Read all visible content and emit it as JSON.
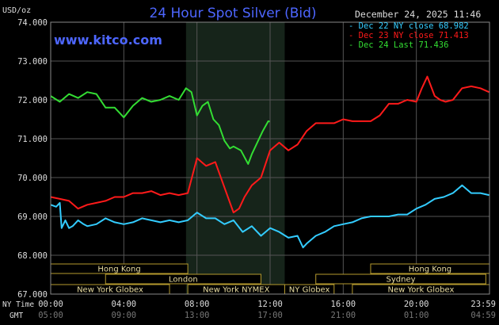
{
  "header": {
    "title": "24 Hour Spot Silver (Bid)",
    "datetime": "December 24, 2025 11:46",
    "unit": "USD/oz",
    "watermark": "www.kitco.com"
  },
  "legend": [
    {
      "label": "Dec 22 NY close 68.982",
      "color": "#33ccff"
    },
    {
      "label": "Dec 23 NY close 71.413",
      "color": "#ff1a1a"
    },
    {
      "label": "Dec 24 Last 71.436",
      "color": "#33dd33"
    }
  ],
  "axes": {
    "y_ticks": [
      "74.000",
      "73.000",
      "72.000",
      "71.000",
      "70.000",
      "69.000",
      "68.000",
      "67.000"
    ],
    "x_ny_labels": [
      "00:00",
      "04:00",
      "08:00",
      "12:00",
      "16:00",
      "20:00",
      "23:59"
    ],
    "x_gmt_labels": [
      "05:00",
      "09:00",
      "13:00",
      "17:00",
      "21:00",
      "01:00",
      "04:59"
    ],
    "ny_time_label": "NY Time",
    "gmt_label": "GMT"
  },
  "sessions": [
    {
      "label": "Hong Kong",
      "row": 0,
      "start": 0,
      "end": 7.5
    },
    {
      "label": "Hong Kong",
      "row": 0,
      "start": 17.5,
      "end": 24
    },
    {
      "label": "London",
      "row": 1,
      "start": 3,
      "end": 11.5
    },
    {
      "label": "Sydney",
      "row": 1,
      "start": 14.5,
      "end": 23.8
    },
    {
      "label": "New York Globex",
      "row": 2,
      "start": 0,
      "end": 6.5
    },
    {
      "label": "New York NYMEX",
      "row": 2,
      "start": 7.5,
      "end": 12.8
    },
    {
      "label": "NY Globex",
      "row": 2,
      "start": 12.8,
      "end": 15.5
    },
    {
      "label": "New York Globex",
      "row": 2,
      "start": 16.5,
      "end": 24
    }
  ],
  "chart_data": {
    "type": "line",
    "title": "24 Hour Spot Silver (Bid)",
    "ylabel": "USD/oz",
    "xlabel": "NY Time",
    "xlim": [
      0,
      24
    ],
    "ylim": [
      67,
      74
    ],
    "x_unit": "hours (NY time)",
    "highlight_range": [
      7.4,
      12.8
    ],
    "grid": true,
    "legend_position": "top-right",
    "series": [
      {
        "name": "Dec 22 NY close 68.982",
        "color": "#33ccff",
        "x": [
          0,
          0.3,
          0.5,
          0.6,
          0.8,
          1.0,
          1.2,
          1.5,
          1.8,
          2.0,
          2.5,
          3.0,
          3.5,
          4.0,
          4.5,
          5.0,
          5.5,
          6.0,
          6.5,
          7.0,
          7.5,
          8.0,
          8.5,
          9.0,
          9.5,
          10.0,
          10.5,
          11.0,
          11.5,
          12.0,
          12.5,
          13.0,
          13.5,
          13.8,
          14.0,
          14.5,
          15.0,
          15.5,
          16.0,
          16.5,
          17.0,
          17.5,
          18.0,
          18.5,
          19.0,
          19.5,
          20.0,
          20.5,
          21.0,
          21.5,
          22.0,
          22.5,
          23.0,
          23.5,
          23.98
        ],
        "y": [
          69.3,
          69.25,
          69.35,
          68.7,
          68.9,
          68.7,
          68.75,
          68.9,
          68.8,
          68.75,
          68.8,
          68.95,
          68.85,
          68.8,
          68.85,
          68.95,
          68.9,
          68.85,
          68.9,
          68.85,
          68.9,
          69.1,
          68.95,
          68.95,
          68.8,
          68.9,
          68.6,
          68.75,
          68.5,
          68.7,
          68.6,
          68.45,
          68.5,
          68.2,
          68.3,
          68.5,
          68.6,
          68.75,
          68.8,
          68.85,
          68.95,
          69.0,
          69.0,
          69.0,
          69.05,
          69.05,
          69.2,
          69.3,
          69.45,
          69.5,
          69.6,
          69.8,
          69.6,
          69.6,
          69.55
        ]
      },
      {
        "name": "Dec 23 NY close 71.413",
        "color": "#ff1a1a",
        "x": [
          0,
          0.5,
          1.0,
          1.5,
          2.0,
          2.5,
          3.0,
          3.5,
          4.0,
          4.5,
          5.0,
          5.5,
          6.0,
          6.5,
          7.0,
          7.5,
          8.0,
          8.5,
          9.0,
          9.5,
          10.0,
          10.3,
          10.6,
          11.0,
          11.5,
          12.0,
          12.5,
          13.0,
          13.5,
          14.0,
          14.5,
          15.0,
          15.5,
          16.0,
          16.5,
          17.0,
          17.5,
          18.0,
          18.5,
          19.0,
          19.5,
          20.0,
          20.3,
          20.6,
          21.0,
          21.3,
          21.6,
          22.0,
          22.5,
          23.0,
          23.5,
          23.98
        ],
        "y": [
          69.5,
          69.45,
          69.4,
          69.2,
          69.3,
          69.35,
          69.4,
          69.5,
          69.5,
          69.6,
          69.6,
          69.65,
          69.55,
          69.6,
          69.55,
          69.6,
          70.5,
          70.3,
          70.4,
          69.75,
          69.1,
          69.2,
          69.5,
          69.8,
          70.0,
          70.7,
          70.9,
          70.7,
          70.85,
          71.2,
          71.4,
          71.4,
          71.4,
          71.5,
          71.45,
          71.45,
          71.45,
          71.6,
          71.9,
          71.9,
          72.0,
          71.95,
          72.3,
          72.6,
          72.1,
          72.0,
          71.95,
          72.0,
          72.3,
          72.35,
          72.3,
          72.2
        ]
      },
      {
        "name": "Dec 24 Last 71.436",
        "color": "#33dd33",
        "x": [
          0,
          0.5,
          1.0,
          1.5,
          2.0,
          2.5,
          3.0,
          3.5,
          4.0,
          4.5,
          5.0,
          5.5,
          6.0,
          6.5,
          7.0,
          7.4,
          7.7,
          8.0,
          8.3,
          8.6,
          8.9,
          9.2,
          9.5,
          9.8,
          10.0,
          10.4,
          10.8,
          11.0,
          11.3,
          11.6,
          11.9,
          11.98
        ],
        "y": [
          72.1,
          71.95,
          72.15,
          72.05,
          72.2,
          72.15,
          71.8,
          71.8,
          71.55,
          71.85,
          72.05,
          71.95,
          72.0,
          72.1,
          72.0,
          72.3,
          72.2,
          71.6,
          71.85,
          71.95,
          71.5,
          71.35,
          70.95,
          70.75,
          70.8,
          70.7,
          70.35,
          70.6,
          70.9,
          71.2,
          71.45,
          71.44
        ]
      }
    ]
  }
}
